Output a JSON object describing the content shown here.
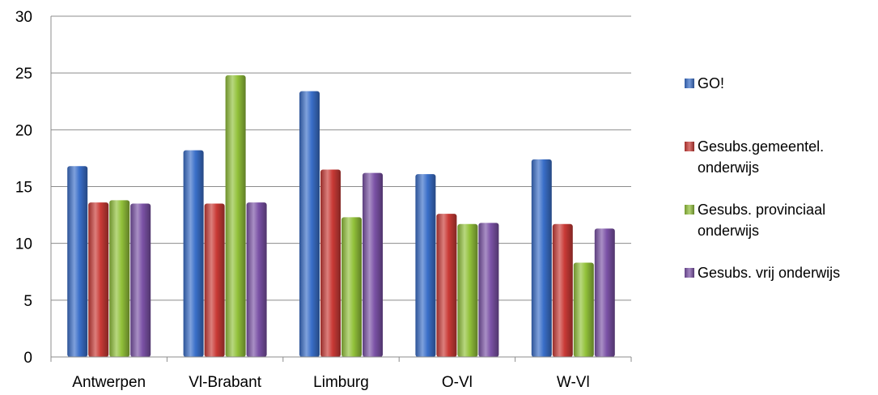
{
  "chart_data": {
    "type": "bar",
    "title": "",
    "xlabel": "",
    "ylabel": "",
    "ylim": [
      0,
      30
    ],
    "yticks": [
      0,
      5,
      10,
      15,
      20,
      25,
      30
    ],
    "grid": true,
    "legend_position": "right",
    "categories": [
      "Antwerpen",
      "Vl-Brabant",
      "Limburg",
      "O-Vl",
      "W-Vl"
    ],
    "series": [
      {
        "name": "GO!",
        "color": "#3a6fc9",
        "values": [
          16.8,
          18.2,
          23.4,
          16.1,
          17.4
        ]
      },
      {
        "name": "Gesubs.gemeentel. onderwijs",
        "color": "#c93a36",
        "values": [
          13.6,
          13.5,
          16.5,
          12.6,
          11.7
        ]
      },
      {
        "name": "Gesubs. provinciaal onderwijs",
        "color": "#92c13a",
        "values": [
          13.8,
          24.8,
          12.3,
          11.7,
          8.3
        ]
      },
      {
        "name": "Gesubs. vrij onderwijs",
        "color": "#7b52a6",
        "values": [
          13.5,
          13.6,
          16.2,
          11.8,
          11.3
        ]
      }
    ]
  }
}
